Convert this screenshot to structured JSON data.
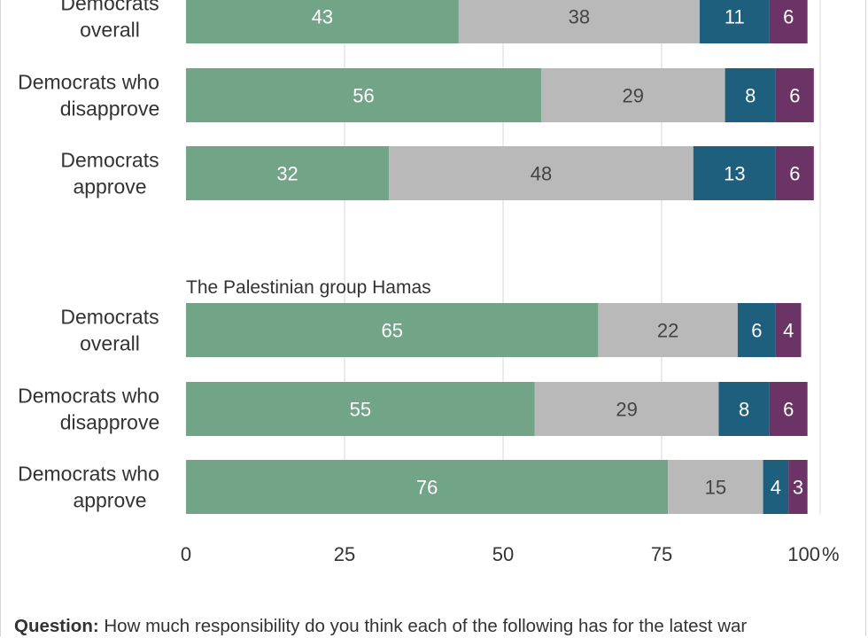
{
  "chart_data": {
    "type": "bar",
    "orientation": "horizontal",
    "stacked": true,
    "xlim": [
      0,
      100
    ],
    "x_ticks": [
      0,
      25,
      50,
      75,
      100
    ],
    "x_tick_labels": [
      "0",
      "25",
      "50",
      "75",
      "100"
    ],
    "x_unit": "%",
    "grid": true,
    "colors": [
      "#72a488",
      "#b9b9b9",
      "#1f5f7e",
      "#6c3366"
    ],
    "label_colors": [
      "#ffffff",
      "#444444",
      "#ffffff",
      "#ffffff"
    ],
    "groups": [
      {
        "title": "",
        "rows": [
          {
            "label": [
              "Democrats",
              "overall"
            ],
            "values": [
              43,
              38,
              11,
              6
            ]
          },
          {
            "label": [
              "Democrats who",
              "disapprove"
            ],
            "values": [
              56,
              29,
              8,
              6
            ]
          },
          {
            "label": [
              "Democrats",
              "approve"
            ],
            "values": [
              32,
              48,
              13,
              6
            ]
          }
        ]
      },
      {
        "title": "The Palestinian group Hamas",
        "rows": [
          {
            "label": [
              "Democrats",
              "overall"
            ],
            "values": [
              65,
              22,
              6,
              4
            ]
          },
          {
            "label": [
              "Democrats who",
              "disapprove"
            ],
            "values": [
              55,
              29,
              8,
              6
            ]
          },
          {
            "label": [
              "Democrats who",
              "approve"
            ],
            "values": [
              76,
              15,
              4,
              3
            ]
          }
        ]
      }
    ]
  },
  "footer": {
    "question_label": "Question:",
    "question_text": "How much responsibility do you think each of the following has for the latest war"
  }
}
